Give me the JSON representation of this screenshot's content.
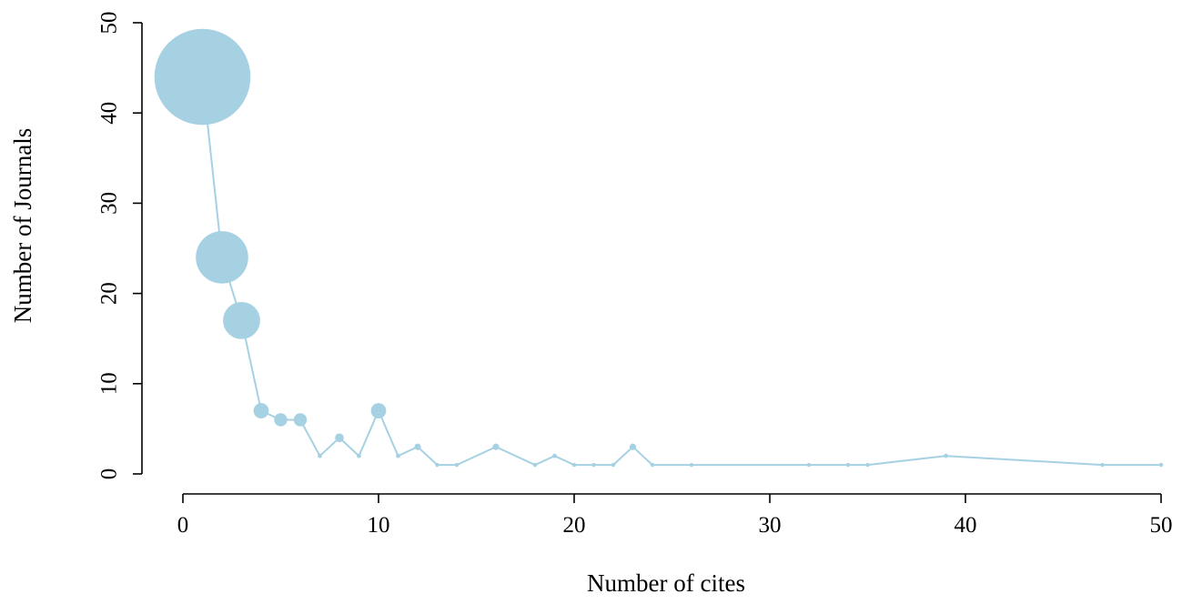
{
  "chart_data": {
    "type": "scatter",
    "title": "",
    "xlabel": "Number of cites",
    "ylabel": "Number of Journals",
    "xlim": [
      0,
      50
    ],
    "ylim": [
      0,
      50
    ],
    "xticks": [
      0,
      10,
      20,
      30,
      40,
      50
    ],
    "yticks": [
      0,
      10,
      20,
      30,
      40,
      50
    ],
    "grid": false,
    "connected_line": true,
    "marker_size_encodes": "y",
    "color": "#a6d1e3",
    "points": [
      {
        "x": 1,
        "y": 44
      },
      {
        "x": 2,
        "y": 24
      },
      {
        "x": 3,
        "y": 17
      },
      {
        "x": 4,
        "y": 7
      },
      {
        "x": 5,
        "y": 6
      },
      {
        "x": 6,
        "y": 6
      },
      {
        "x": 7,
        "y": 2
      },
      {
        "x": 8,
        "y": 4
      },
      {
        "x": 9,
        "y": 2
      },
      {
        "x": 10,
        "y": 7
      },
      {
        "x": 11,
        "y": 2
      },
      {
        "x": 12,
        "y": 3
      },
      {
        "x": 13,
        "y": 1
      },
      {
        "x": 14,
        "y": 1
      },
      {
        "x": 16,
        "y": 3
      },
      {
        "x": 18,
        "y": 1
      },
      {
        "x": 19,
        "y": 2
      },
      {
        "x": 20,
        "y": 1
      },
      {
        "x": 21,
        "y": 1
      },
      {
        "x": 22,
        "y": 1
      },
      {
        "x": 23,
        "y": 3
      },
      {
        "x": 24,
        "y": 1
      },
      {
        "x": 26,
        "y": 1
      },
      {
        "x": 32,
        "y": 1
      },
      {
        "x": 34,
        "y": 1
      },
      {
        "x": 35,
        "y": 1
      },
      {
        "x": 39,
        "y": 2
      },
      {
        "x": 47,
        "y": 1
      },
      {
        "x": 50,
        "y": 1
      }
    ]
  }
}
